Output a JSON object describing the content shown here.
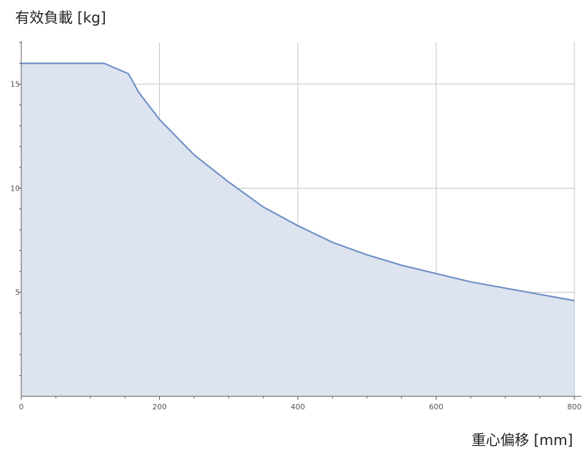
{
  "chart_data": {
    "type": "area",
    "title": "",
    "ylabel": "有效負載 [kg]",
    "xlabel": "重心偏移 [mm]",
    "xlim": [
      0,
      800
    ],
    "ylim": [
      0,
      17
    ],
    "x_ticks": [
      0,
      200,
      400,
      600,
      800
    ],
    "x_tick_labels": [
      "0",
      "200",
      "400",
      "600",
      "800"
    ],
    "y_ticks": [
      5,
      10,
      15
    ],
    "y_tick_labels": [
      "5",
      "10",
      "15"
    ],
    "grid": true,
    "legend": "none",
    "series": [
      {
        "x": [
          0,
          120,
          155,
          170,
          200,
          250,
          300,
          350,
          400,
          450,
          500,
          550,
          600,
          650,
          700,
          750,
          800
        ],
        "y": [
          16.0,
          16.0,
          15.5,
          14.6,
          13.3,
          11.6,
          10.3,
          9.1,
          8.2,
          7.4,
          6.8,
          6.3,
          5.9,
          5.5,
          5.2,
          4.9,
          4.6
        ]
      }
    ],
    "colors": {
      "line": "#6f8fc6",
      "fill": "#dde3ef",
      "grid": "#c4c4c4",
      "axis": "#555555"
    }
  }
}
